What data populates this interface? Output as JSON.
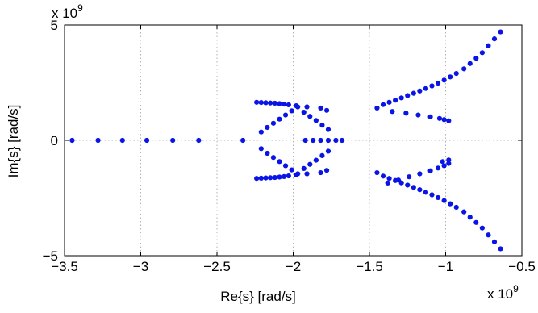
{
  "chart_data": {
    "type": "scatter",
    "title": "",
    "xlabel": "Re{s} [rad/s]",
    "ylabel": "Im{s} [rad/s]",
    "x_scale_label": "x 10^9",
    "y_scale_label": "x 10^9",
    "x_scale_prefix": "x 10",
    "y_scale_prefix": "x 10",
    "scale_exponent": "9",
    "xlim": [
      -3.5,
      -0.5
    ],
    "ylim": [
      -5,
      5
    ],
    "xticks": [
      -3.5,
      -3,
      -2.5,
      -2,
      -1.5,
      -1,
      -0.5
    ],
    "xtick_labels": [
      "−3.5",
      "−3",
      "−2.5",
      "−2",
      "−1.5",
      "−1",
      "−0.5"
    ],
    "yticks": [
      -5,
      0,
      5
    ],
    "ytick_labels": [
      "−5",
      "0",
      "5"
    ],
    "grid": true,
    "marker_color": "#0a14e6",
    "points": [
      [
        -3.45,
        0
      ],
      [
        -3.28,
        0
      ],
      [
        -3.12,
        0
      ],
      [
        -2.96,
        0
      ],
      [
        -2.79,
        0
      ],
      [
        -2.62,
        0
      ],
      [
        -2.33,
        0
      ],
      [
        -1.92,
        0
      ],
      [
        -1.87,
        0
      ],
      [
        -1.82,
        0
      ],
      [
        -1.77,
        0
      ],
      [
        -1.72,
        0
      ],
      [
        -1.68,
        0
      ],
      [
        -2.24,
        1.65
      ],
      [
        -2.21,
        1.64
      ],
      [
        -2.18,
        1.63
      ],
      [
        -2.15,
        1.62
      ],
      [
        -2.12,
        1.61
      ],
      [
        -2.09,
        1.59
      ],
      [
        -2.06,
        1.57
      ],
      [
        -2.03,
        1.54
      ],
      [
        -1.98,
        1.5
      ],
      [
        -1.91,
        1.45
      ],
      [
        -1.82,
        1.4
      ],
      [
        -1.78,
        1.3
      ],
      [
        -2.21,
        0.36
      ],
      [
        -2.17,
        0.56
      ],
      [
        -2.13,
        0.74
      ],
      [
        -2.09,
        0.92
      ],
      [
        -2.05,
        1.1
      ],
      [
        -2.01,
        1.28
      ],
      [
        -1.97,
        1.45
      ],
      [
        -1.77,
        0.47
      ],
      [
        -1.81,
        0.66
      ],
      [
        -1.85,
        0.86
      ],
      [
        -1.89,
        1.04
      ],
      [
        -1.93,
        1.22
      ],
      [
        -2.24,
        -1.65
      ],
      [
        -2.21,
        -1.64
      ],
      [
        -2.18,
        -1.63
      ],
      [
        -2.15,
        -1.62
      ],
      [
        -2.12,
        -1.61
      ],
      [
        -2.09,
        -1.59
      ],
      [
        -2.06,
        -1.57
      ],
      [
        -2.03,
        -1.54
      ],
      [
        -1.98,
        -1.5
      ],
      [
        -1.91,
        -1.45
      ],
      [
        -1.82,
        -1.4
      ],
      [
        -1.78,
        -1.3
      ],
      [
        -2.21,
        -0.36
      ],
      [
        -2.17,
        -0.56
      ],
      [
        -2.13,
        -0.74
      ],
      [
        -2.09,
        -0.92
      ],
      [
        -2.05,
        -1.1
      ],
      [
        -2.01,
        -1.28
      ],
      [
        -1.97,
        -1.45
      ],
      [
        -1.77,
        -0.47
      ],
      [
        -1.81,
        -0.66
      ],
      [
        -1.85,
        -0.86
      ],
      [
        -1.89,
        -1.04
      ],
      [
        -1.93,
        -1.22
      ],
      [
        -1.45,
        1.4
      ],
      [
        -1.41,
        1.55
      ],
      [
        -1.37,
        1.65
      ],
      [
        -1.33,
        1.74
      ],
      [
        -1.29,
        1.84
      ],
      [
        -1.25,
        1.94
      ],
      [
        -1.21,
        2.04
      ],
      [
        -1.17,
        2.14
      ],
      [
        -1.13,
        2.25
      ],
      [
        -1.09,
        2.36
      ],
      [
        -1.05,
        2.48
      ],
      [
        -1.01,
        2.61
      ],
      [
        -0.97,
        2.75
      ],
      [
        -0.93,
        2.9
      ],
      [
        -0.88,
        3.1
      ],
      [
        -0.84,
        3.33
      ],
      [
        -0.8,
        3.56
      ],
      [
        -0.76,
        3.8
      ],
      [
        -0.72,
        4.1
      ],
      [
        -0.68,
        4.4
      ],
      [
        -0.64,
        4.7
      ],
      [
        -1.35,
        1.25
      ],
      [
        -1.26,
        1.18
      ],
      [
        -1.18,
        1.1
      ],
      [
        -1.1,
        1.02
      ],
      [
        -1.04,
        0.95
      ],
      [
        -1.01,
        0.9
      ],
      [
        -0.98,
        0.85
      ],
      [
        -1.45,
        -1.4
      ],
      [
        -1.41,
        -1.55
      ],
      [
        -1.37,
        -1.65
      ],
      [
        -1.33,
        -1.74
      ],
      [
        -1.29,
        -1.84
      ],
      [
        -1.25,
        -1.94
      ],
      [
        -1.21,
        -2.04
      ],
      [
        -1.17,
        -2.14
      ],
      [
        -1.13,
        -2.25
      ],
      [
        -1.09,
        -2.36
      ],
      [
        -1.05,
        -2.48
      ],
      [
        -1.01,
        -2.61
      ],
      [
        -0.97,
        -2.75
      ],
      [
        -0.93,
        -2.9
      ],
      [
        -0.88,
        -3.1
      ],
      [
        -0.84,
        -3.33
      ],
      [
        -0.8,
        -3.56
      ],
      [
        -0.76,
        -3.8
      ],
      [
        -0.72,
        -4.1
      ],
      [
        -0.68,
        -4.4
      ],
      [
        -0.64,
        -4.7
      ],
      [
        -1.38,
        -1.85
      ],
      [
        -1.31,
        -1.72
      ],
      [
        -1.24,
        -1.58
      ],
      [
        -1.17,
        -1.45
      ],
      [
        -1.1,
        -1.32
      ],
      [
        -1.05,
        -1.2
      ],
      [
        -1.01,
        -1.1
      ],
      [
        -0.98,
        -1.0
      ],
      [
        -1.02,
        -0.92
      ],
      [
        -0.98,
        -0.85
      ]
    ]
  }
}
